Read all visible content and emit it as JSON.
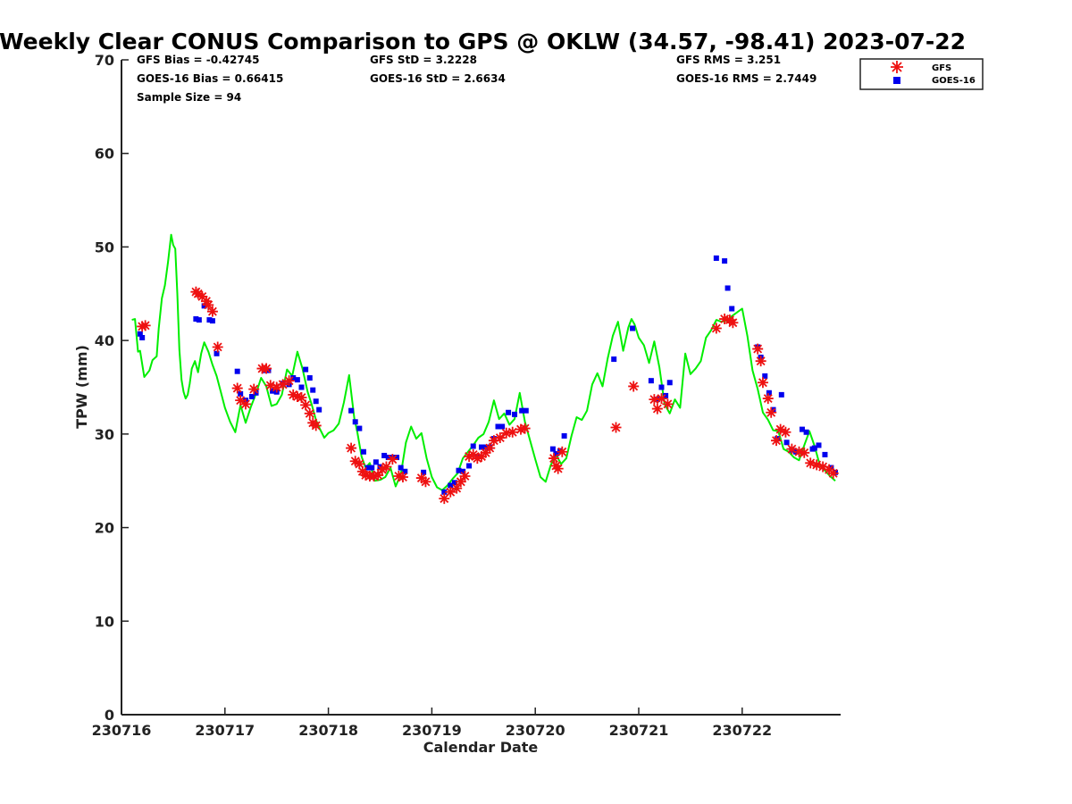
{
  "chart_data": {
    "type": "scatter",
    "title": "Weekly Clear CONUS Comparison to GPS @ OKLW (34.57, -98.41) 2023-07-22",
    "xlabel": "Calendar Date",
    "ylabel": "TPW (mm)",
    "xlim": [
      230716,
      230722.9
    ],
    "ylim": [
      0,
      70
    ],
    "x_ticks": [
      "230716",
      "230717",
      "230718",
      "230719",
      "230720",
      "230721",
      "230722"
    ],
    "y_ticks": [
      "0",
      "10",
      "20",
      "30",
      "40",
      "50",
      "60",
      "70"
    ],
    "grid": false,
    "legend_position": "top-right",
    "stats": {
      "gfs_bias": "GFS Bias = -0.42745",
      "goes_bias": "GOES-16 Bias = 0.66415",
      "sample_size": "Sample Size = 94",
      "gfs_std": "GFS StD = 3.2228",
      "goes_std": "GOES-16 StD = 2.6634",
      "gfs_rms": "GFS RMS = 3.251",
      "goes_rms": "GOES-16 RMS = 2.7449"
    },
    "series": [
      {
        "name": "GPS",
        "kind": "line",
        "color": "#00ee00",
        "x": [
          230716.1,
          230716.13,
          230716.16,
          230716.18,
          230716.22,
          230716.25,
          230716.27,
          230716.3,
          230716.34,
          230716.36,
          230716.39,
          230716.42,
          230716.45,
          230716.48,
          230716.5,
          230716.52,
          230716.54,
          230716.56,
          230716.58,
          230716.6,
          230716.62,
          230716.64,
          230716.66,
          230716.68,
          230716.71,
          230716.74,
          230716.77,
          230716.8,
          230716.84,
          230716.88,
          230716.92,
          230716.96,
          230717.0,
          230717.05,
          230717.1,
          230717.15,
          230717.2,
          230717.25,
          230717.3,
          230717.35,
          230717.4,
          230717.45,
          230717.5,
          230717.55,
          230717.6,
          230717.65,
          230717.7,
          230717.75,
          230717.8,
          230717.84,
          230717.88,
          230717.92,
          230717.96,
          230718.0,
          230718.05,
          230718.1,
          230718.15,
          230718.2,
          230718.25,
          230718.28,
          230718.32,
          230718.36,
          230718.4,
          230718.45,
          230718.5,
          230718.55,
          230718.6,
          230718.65,
          230718.7,
          230718.75,
          230718.8,
          230718.85,
          230718.9,
          230718.95,
          230719.0,
          230719.05,
          230719.1,
          230719.15,
          230719.2,
          230719.25,
          230719.3,
          230719.35,
          230719.4,
          230719.45,
          230719.5,
          230719.55,
          230719.6,
          230719.65,
          230719.7,
          230719.75,
          230719.8,
          230719.85,
          230719.9,
          230719.95,
          230720.0,
          230720.05,
          230720.1,
          230720.15,
          230720.2,
          230720.25,
          230720.3,
          230720.35,
          230720.4,
          230720.45,
          230720.5,
          230720.55,
          230720.6,
          230720.65,
          230720.7,
          230720.75,
          230720.8,
          230720.85,
          230720.9,
          230720.93,
          230720.96,
          230721.0,
          230721.05,
          230721.1,
          230721.15,
          230721.2,
          230721.25,
          230721.3,
          230721.35,
          230721.4,
          230721.45,
          230721.5,
          230721.55,
          230721.6,
          230721.65,
          230721.7,
          230721.75,
          230721.8,
          230721.85,
          230721.9,
          230721.95,
          230722.0,
          230722.05,
          230722.1,
          230722.15,
          230722.2,
          230722.25,
          230722.3,
          230722.35,
          230722.4,
          230722.45,
          230722.5,
          230722.55,
          230722.6,
          230722.65,
          230722.7,
          230722.75,
          230722.8,
          230722.85,
          230722.9
        ],
        "y": [
          42.2,
          42.3,
          38.8,
          38.9,
          36.1,
          36.5,
          36.8,
          37.9,
          38.3,
          41.3,
          44.5,
          45.9,
          48.4,
          51.3,
          50.2,
          49.8,
          45.0,
          39.0,
          35.8,
          34.5,
          33.8,
          34.2,
          35.4,
          37.0,
          37.8,
          36.6,
          38.6,
          39.8,
          38.8,
          37.4,
          36.2,
          34.5,
          32.8,
          31.3,
          30.2,
          33.1,
          31.2,
          32.9,
          34.3,
          36.0,
          35.1,
          33.0,
          33.2,
          34.2,
          36.9,
          36.2,
          38.8,
          37.0,
          34.5,
          33.1,
          31.5,
          30.5,
          29.6,
          30.1,
          30.4,
          31.1,
          33.4,
          36.3,
          31.7,
          30.2,
          27.6,
          26.4,
          26.9,
          25.0,
          25.1,
          25.4,
          26.4,
          24.4,
          25.7,
          29.1,
          30.8,
          29.5,
          30.1,
          27.4,
          25.4,
          24.3,
          24.0,
          24.5,
          25.2,
          25.8,
          27.4,
          28.1,
          28.8,
          29.6,
          30.0,
          31.3,
          33.6,
          31.6,
          32.2,
          31.0,
          31.6,
          34.4,
          31.3,
          29.3,
          27.3,
          25.4,
          24.9,
          26.7,
          27.8,
          26.8,
          27.4,
          29.8,
          31.8,
          31.5,
          32.5,
          35.3,
          36.5,
          35.1,
          38.1,
          40.5,
          42.0,
          38.9,
          41.4,
          42.3,
          41.7,
          40.3,
          39.5,
          37.6,
          39.9,
          37.1,
          33.2,
          32.2,
          33.7,
          32.8,
          38.6,
          36.4,
          37.0,
          37.8,
          40.3,
          41.1,
          42.2,
          42.0,
          42.1,
          42.6,
          43.0,
          43.4,
          40.5,
          36.8,
          34.8,
          32.3,
          31.5,
          30.4,
          30.3,
          28.4,
          28.1,
          27.5,
          27.2,
          28.8,
          30.3,
          28.7,
          26.7,
          26.1,
          25.5,
          25.0
        ]
      },
      {
        "name": "GFS",
        "kind": "star",
        "color": "#ee1111",
        "x": [
          230716.2,
          230716.23,
          230716.72,
          230716.74,
          230716.78,
          230716.82,
          230716.84,
          230716.88,
          230716.93,
          230717.12,
          230717.15,
          230717.2,
          230717.28,
          230717.36,
          230717.4,
          230717.44,
          230717.5,
          230717.56,
          230717.62,
          230717.66,
          230717.7,
          230717.74,
          230717.78,
          230717.82,
          230717.85,
          230717.88,
          230718.22,
          230718.26,
          230718.3,
          230718.33,
          230718.36,
          230718.4,
          230718.44,
          230718.48,
          230718.52,
          230718.56,
          230718.62,
          230718.68,
          230718.72,
          230718.9,
          230718.94,
          230719.12,
          230719.18,
          230719.24,
          230719.28,
          230719.32,
          230719.36,
          230719.4,
          230719.44,
          230719.48,
          230719.52,
          230719.56,
          230719.6,
          230719.66,
          230719.72,
          230719.78,
          230719.86,
          230719.9,
          230720.18,
          230720.2,
          230720.22,
          230720.26,
          230720.78,
          230720.95,
          230721.15,
          230721.18,
          230721.22,
          230721.28,
          230721.75,
          230721.83,
          230721.88,
          230721.91,
          230722.15,
          230722.18,
          230722.2,
          230722.25,
          230722.28,
          230722.33,
          230722.37,
          230722.42,
          230722.48,
          230722.55,
          230722.6,
          230722.66,
          230722.72,
          230722.78,
          230722.84,
          230722.88
        ],
        "y": [
          41.5,
          41.6,
          45.2,
          45.0,
          44.7,
          44.2,
          43.8,
          43.1,
          39.3,
          34.9,
          33.6,
          33.2,
          34.8,
          37.0,
          37.0,
          35.2,
          35.0,
          35.3,
          35.7,
          34.2,
          34.0,
          33.9,
          33.1,
          32.2,
          31.2,
          30.9,
          28.5,
          27.1,
          26.8,
          26.0,
          25.6,
          25.5,
          25.5,
          25.6,
          26.2,
          26.5,
          27.3,
          25.5,
          25.4,
          25.3,
          24.9,
          23.1,
          23.8,
          24.2,
          24.9,
          25.5,
          27.6,
          27.8,
          27.4,
          27.6,
          28.0,
          28.5,
          29.3,
          29.6,
          30.1,
          30.2,
          30.5,
          30.6,
          27.4,
          26.6,
          26.3,
          28.1,
          30.7,
          35.1,
          33.7,
          32.7,
          33.8,
          33.2,
          41.3,
          42.3,
          42.2,
          41.9,
          39.1,
          37.8,
          35.5,
          33.8,
          32.3,
          29.3,
          30.5,
          30.2,
          28.4,
          28.1,
          28.0,
          26.9,
          26.7,
          26.5,
          26.2,
          25.8
        ]
      },
      {
        "name": "GOES-16",
        "kind": "square",
        "color": "#0000ee",
        "x": [
          230716.18,
          230716.2,
          230716.72,
          230716.75,
          230716.8,
          230716.85,
          230716.88,
          230716.92,
          230717.12,
          230717.15,
          230717.2,
          230717.26,
          230717.3,
          230717.38,
          230717.42,
          230717.46,
          230717.5,
          230717.56,
          230717.62,
          230717.66,
          230717.7,
          230717.74,
          230717.78,
          230717.82,
          230717.85,
          230717.88,
          230717.91,
          230718.22,
          230718.26,
          230718.3,
          230718.34,
          230718.38,
          230718.42,
          230718.46,
          230718.5,
          230718.54,
          230718.58,
          230718.62,
          230718.66,
          230718.7,
          230718.74,
          230718.92,
          230719.12,
          230719.18,
          230719.22,
          230719.26,
          230719.3,
          230719.36,
          230719.4,
          230719.44,
          230719.48,
          230719.52,
          230719.56,
          230719.6,
          230719.64,
          230719.68,
          230719.74,
          230719.8,
          230719.87,
          230719.91,
          230720.17,
          230720.2,
          230720.24,
          230720.28,
          230720.76,
          230720.94,
          230721.12,
          230721.18,
          230721.22,
          230721.26,
          230721.3,
          230721.75,
          230721.83,
          230721.86,
          230721.9,
          230722.15,
          230722.18,
          230722.22,
          230722.26,
          230722.3,
          230722.34,
          230722.38,
          230722.43,
          230722.48,
          230722.52,
          230722.58,
          230722.62,
          230722.68,
          230722.7,
          230722.74,
          230722.8,
          230722.86,
          230722.9
        ],
        "y": [
          40.7,
          40.3,
          42.3,
          42.2,
          43.7,
          42.2,
          42.1,
          38.6,
          36.7,
          34.3,
          33.6,
          34.0,
          34.4,
          36.8,
          36.8,
          34.6,
          34.5,
          35.4,
          35.3,
          36.0,
          35.8,
          35.0,
          36.9,
          36.0,
          34.7,
          33.5,
          32.6,
          32.5,
          31.3,
          30.6,
          28.1,
          26.4,
          26.4,
          27.0,
          26.5,
          27.7,
          27.5,
          27.5,
          27.5,
          26.4,
          26.0,
          25.9,
          23.8,
          24.5,
          24.8,
          26.1,
          26.0,
          26.6,
          28.7,
          27.6,
          28.6,
          28.6,
          28.6,
          29.5,
          30.8,
          30.8,
          32.3,
          32.1,
          32.5,
          32.5,
          28.4,
          27.9,
          28.2,
          29.8,
          38.0,
          41.3,
          35.7,
          33.7,
          35.0,
          34.1,
          35.5,
          48.8,
          48.5,
          45.6,
          43.4,
          39.3,
          38.2,
          36.2,
          34.4,
          32.6,
          29.5,
          34.2,
          29.1,
          28.3,
          28.1,
          30.5,
          30.2,
          28.4,
          28.5,
          28.8,
          27.8,
          26.4,
          25.9
        ]
      }
    ]
  }
}
